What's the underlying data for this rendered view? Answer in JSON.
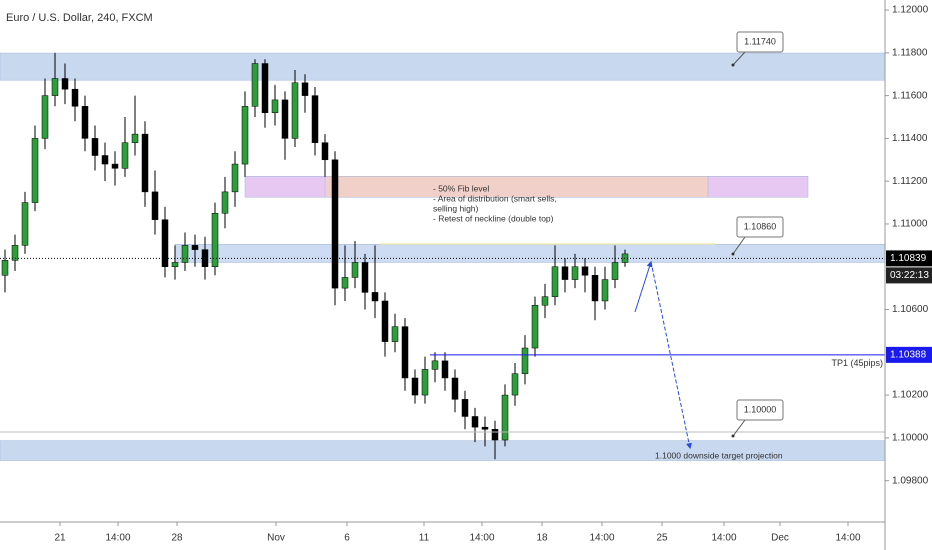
{
  "chart_data": {
    "type": "candlestick",
    "title": "Euro / U.S. Dollar, 240, FXCM",
    "up_color": "#2e9e3b",
    "down_color": "#000000",
    "open": [
      1.1076,
      1.1083,
      1.109,
      1.111,
      1.114,
      1.116,
      1.1168,
      1.1163,
      1.1155,
      1.114,
      1.1132,
      1.1128,
      1.1126,
      1.1138,
      1.1142,
      1.1115,
      1.1102,
      1.108,
      1.1082,
      1.109,
      1.1088,
      1.108,
      1.1105,
      1.1115,
      1.1128,
      1.1155,
      1.1175,
      1.1152,
      1.1158,
      1.114,
      1.1166,
      1.116,
      1.1138,
      1.113,
      1.107,
      1.1075,
      1.1082,
      1.1068,
      1.1064,
      1.1045,
      1.1052,
      1.1028,
      1.102,
      1.1032,
      1.1036,
      1.1028,
      1.1018,
      1.101,
      1.1005,
      1.1004,
      1.0999,
      1.102,
      1.103,
      1.1042,
      1.1062,
      1.1066,
      1.108,
      1.1074,
      1.108,
      1.1076,
      1.1064,
      1.1074,
      1.1082
    ],
    "high": [
      1.1088,
      1.1095,
      1.1115,
      1.1146,
      1.1168,
      1.118,
      1.1175,
      1.1168,
      1.116,
      1.1146,
      1.1138,
      1.1134,
      1.115,
      1.116,
      1.1148,
      1.1125,
      1.1108,
      1.109,
      1.1096,
      1.1095,
      1.1094,
      1.111,
      1.1122,
      1.1134,
      1.1162,
      1.1177,
      1.1177,
      1.1165,
      1.1162,
      1.1172,
      1.117,
      1.1164,
      1.1142,
      1.1134,
      1.109,
      1.1092,
      1.1086,
      1.109,
      1.1068,
      1.1058,
      1.1056,
      1.1032,
      1.1038,
      1.104,
      1.104,
      1.1032,
      1.1022,
      1.1014,
      1.101,
      1.1008,
      1.1025,
      1.1035,
      1.1048,
      1.1066,
      1.1072,
      1.109,
      1.1084,
      1.1086,
      1.1084,
      1.108,
      1.108,
      1.109,
      1.1088
    ],
    "low": [
      1.1068,
      1.1078,
      1.1086,
      1.1106,
      1.1135,
      1.1155,
      1.1156,
      1.1148,
      1.1134,
      1.1125,
      1.112,
      1.1118,
      1.1122,
      1.1132,
      1.1108,
      1.1095,
      1.1075,
      1.1074,
      1.1078,
      1.108,
      1.1074,
      1.1076,
      1.1098,
      1.1108,
      1.1122,
      1.115,
      1.1145,
      1.1146,
      1.113,
      1.1136,
      1.1152,
      1.1132,
      1.1122,
      1.1062,
      1.1064,
      1.107,
      1.106,
      1.1056,
      1.1038,
      1.104,
      1.1022,
      1.1016,
      1.1016,
      1.1026,
      1.1022,
      1.1012,
      1.1004,
      1.0998,
      1.0996,
      1.099,
      1.0996,
      1.1015,
      1.1025,
      1.1038,
      1.1056,
      1.1062,
      1.1068,
      1.107,
      1.1068,
      1.1055,
      1.106,
      1.107,
      1.108
    ],
    "close": [
      1.1083,
      1.109,
      1.111,
      1.114,
      1.116,
      1.1168,
      1.1163,
      1.1155,
      1.114,
      1.1132,
      1.1128,
      1.1126,
      1.1138,
      1.1142,
      1.1115,
      1.1102,
      1.108,
      1.1082,
      1.109,
      1.1088,
      1.108,
      1.1105,
      1.1115,
      1.1128,
      1.1155,
      1.1175,
      1.1152,
      1.1158,
      1.114,
      1.1166,
      1.116,
      1.1138,
      1.113,
      1.107,
      1.1075,
      1.1082,
      1.1068,
      1.1064,
      1.1045,
      1.1052,
      1.1028,
      1.102,
      1.1032,
      1.1036,
      1.1028,
      1.1018,
      1.101,
      1.1005,
      1.1004,
      1.0999,
      1.102,
      1.103,
      1.1042,
      1.1062,
      1.1066,
      1.108,
      1.1074,
      1.108,
      1.1076,
      1.1064,
      1.1074,
      1.1082,
      1.1086
    ],
    "xlim": [
      -0.5,
      88
    ],
    "ylim": [
      1.09616,
      1.12047
    ],
    "xticks": [
      {
        "value": 5.5,
        "label": "21"
      },
      {
        "value": 11.3,
        "label": "14:00"
      },
      {
        "value": 17.2,
        "label": "28"
      },
      {
        "value": 27.1,
        "label": "Nov"
      },
      {
        "value": 34.2,
        "label": "6"
      },
      {
        "value": 41.9,
        "label": "11"
      },
      {
        "value": 47.7,
        "label": "14:00"
      },
      {
        "value": 53.7,
        "label": "18"
      },
      {
        "value": 59.7,
        "label": "14:00"
      },
      {
        "value": 65.7,
        "label": "25"
      },
      {
        "value": 71.9,
        "label": "14:00"
      },
      {
        "value": 77.5,
        "label": "Dec"
      },
      {
        "value": 84.3,
        "label": "14:00"
      }
    ],
    "yticks": [
      {
        "value": 1.12,
        "label": "1.12000"
      },
      {
        "value": 1.118,
        "label": "1.11800"
      },
      {
        "value": 1.116,
        "label": "1.11600"
      },
      {
        "value": 1.114,
        "label": "1.11400"
      },
      {
        "value": 1.112,
        "label": "1.11200"
      },
      {
        "value": 1.11,
        "label": "1.11000"
      },
      {
        "value": 1.106,
        "label": "1.10600"
      },
      {
        "value": 1.102,
        "label": "1.10200"
      },
      {
        "value": 1.1,
        "label": "1.10000"
      },
      {
        "value": 1.098,
        "label": "1.09800"
      }
    ],
    "zones": [
      {
        "low": 1.11672,
        "high": 1.11799,
        "from": -0.5,
        "to": 88,
        "color": "#c8d8ef"
      },
      {
        "low": 1.11125,
        "high": 1.11223,
        "from": 24,
        "to": 80.3,
        "color": "#e6c8f2"
      },
      {
        "low": 1.11125,
        "high": 1.11223,
        "from": 32,
        "to": 70.3,
        "color": "#f0d0c8"
      },
      {
        "low": 1.1082,
        "high": 1.10905,
        "from": 17,
        "to": 88,
        "color": "#cddcf2"
      },
      {
        "low": 1.09894,
        "high": 1.09987,
        "from": -0.5,
        "to": 88,
        "color": "#c8d8ef"
      }
    ],
    "price_badges": [
      {
        "value": 1.10839,
        "label": "1.10839",
        "color": "#000000"
      },
      {
        "value": 1.10388,
        "label": "1.10388",
        "color": "#1a1aee"
      }
    ],
    "countdown": "03:22:13",
    "tp_label": "TP1 (45pips)",
    "callouts": [
      "1.11740",
      "1.10860",
      "1.10000"
    ],
    "note": [
      "- 50% Fib level",
      "- Area of distribution (smart sells,",
      "selling high)",
      "- Retest of neckline (double top)"
    ],
    "target_label": "1.1000 downside target projection"
  }
}
